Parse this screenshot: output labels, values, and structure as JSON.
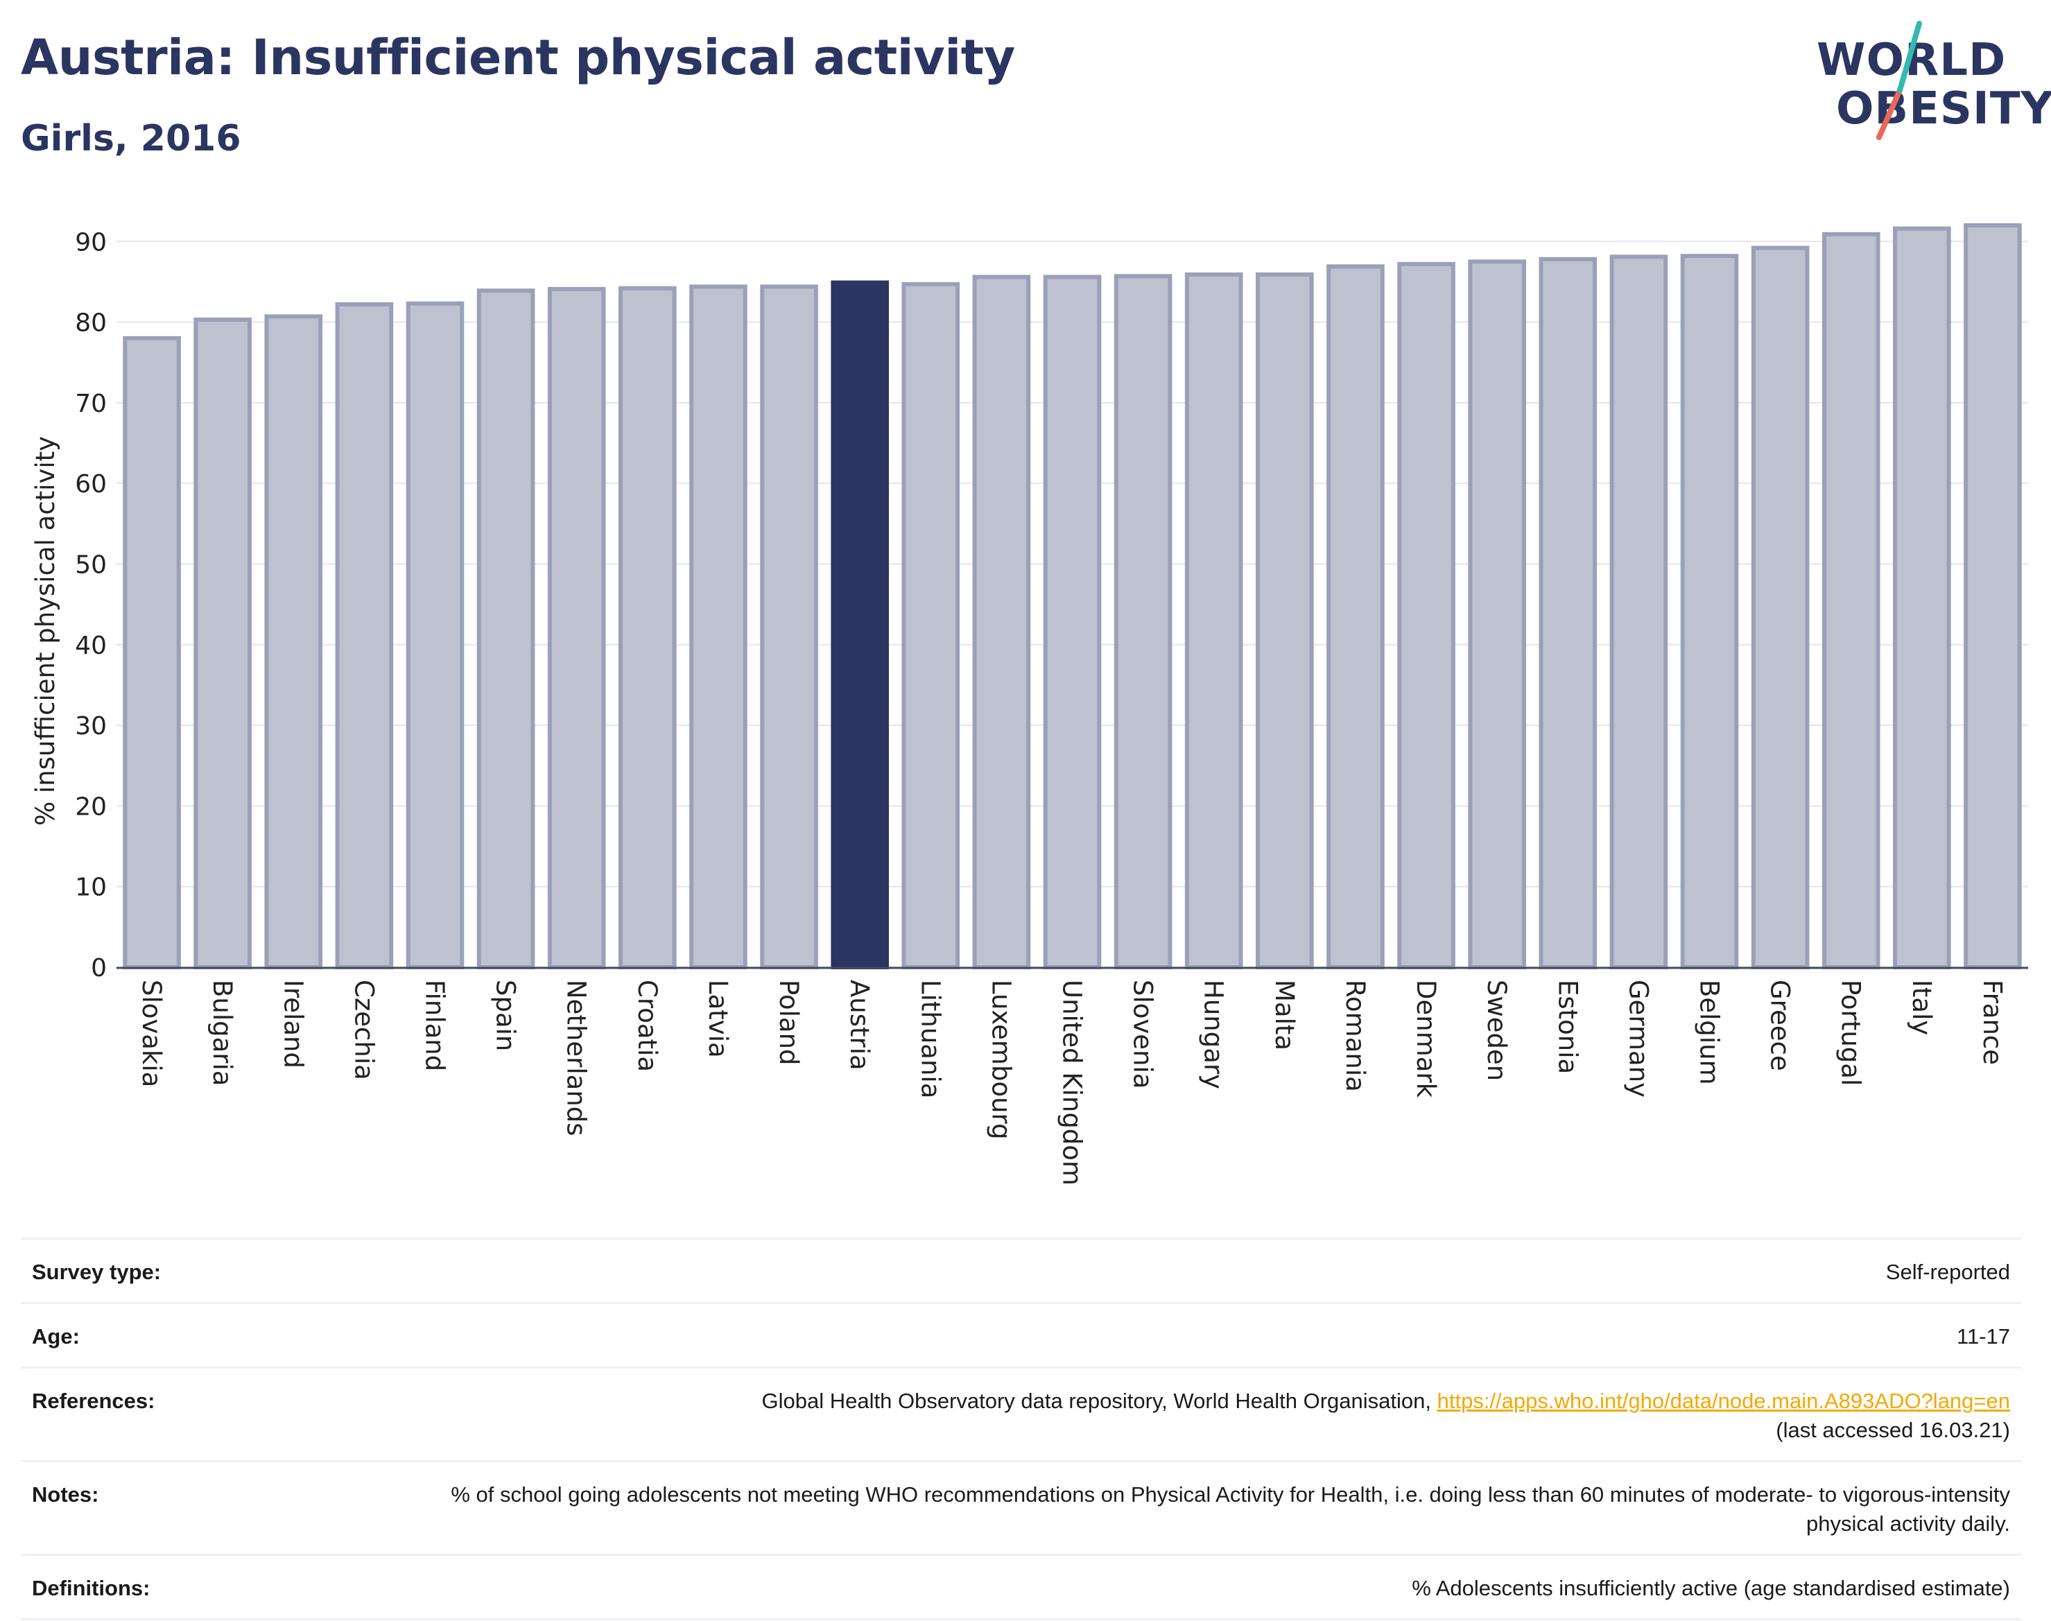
{
  "title": "Austria: Insufficient physical activity",
  "subtitle": "Girls, 2016",
  "logo": {
    "line1": "WORLD",
    "line2": "OBESITY"
  },
  "colors": {
    "highlight": "#2b3561",
    "bar_fill": "#bec1cf",
    "bar_stroke": "#9aa0b8",
    "link": "#f5a800"
  },
  "chart_data": {
    "type": "bar",
    "title": "Austria: Insufficient physical activity",
    "subtitle": "Girls, 2016",
    "xlabel": "",
    "ylabel": "% insufficient physical activity",
    "ylim": [
      0,
      92
    ],
    "yticks": [
      0,
      10,
      20,
      30,
      40,
      50,
      60,
      70,
      80,
      90
    ],
    "grid": true,
    "highlight": "Austria",
    "categories": [
      "Slovakia",
      "Bulgaria",
      "Ireland",
      "Czechia",
      "Finland",
      "Spain",
      "Netherlands",
      "Croatia",
      "Latvia",
      "Poland",
      "Austria",
      "Lithuania",
      "Luxembourg",
      "United Kingdom",
      "Slovenia",
      "Hungary",
      "Malta",
      "Romania",
      "Denmark",
      "Sweden",
      "Estonia",
      "Germany",
      "Belgium",
      "Greece",
      "Portugal",
      "Italy",
      "France"
    ],
    "values": [
      78.0,
      80.3,
      80.7,
      82.2,
      82.3,
      83.9,
      84.1,
      84.2,
      84.4,
      84.4,
      84.9,
      84.7,
      85.6,
      85.6,
      85.7,
      85.9,
      85.9,
      86.9,
      87.2,
      87.5,
      87.8,
      88.1,
      88.2,
      89.2,
      90.9,
      91.6,
      92.0
    ]
  },
  "info": {
    "survey_label": "Survey type:",
    "survey_value": "Self-reported",
    "age_label": "Age:",
    "age_value": "11-17",
    "references_label": "References:",
    "references_text": "Global Health Observatory data repository, World Health Organisation, ",
    "references_link": "https://apps.who.int/gho/data/node.main.A893ADO?lang=en",
    "references_accessed": "(last accessed 16.03.21)",
    "notes_label": "Notes:",
    "notes_value": "% of school going adolescents not meeting WHO recommendations on Physical Activity for Health, i.e. doing less than 60 minutes of moderate- to vigorous-intensity physical activity daily.",
    "definitions_label": "Definitions:",
    "definitions_value": "% Adolescents insufficiently active (age standardised estimate)"
  }
}
